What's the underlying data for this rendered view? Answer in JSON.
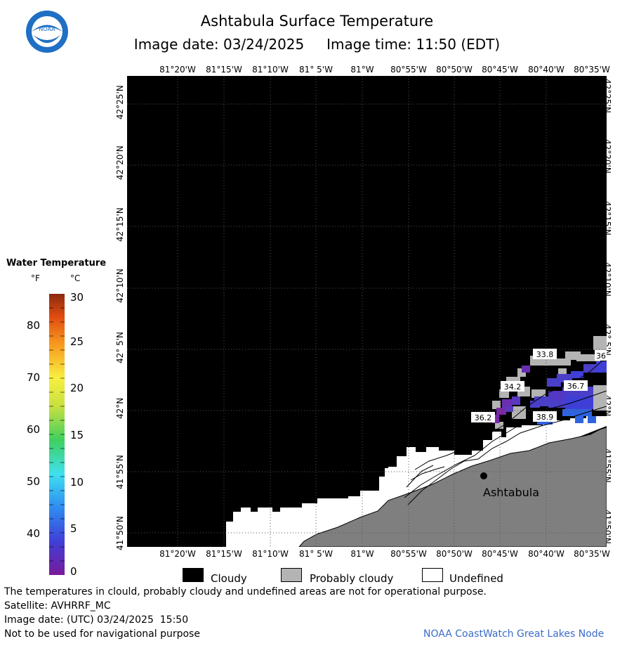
{
  "header": {
    "title": "Ashtabula Surface Temperature",
    "image_date_label": "Image date: 03/24/2025",
    "image_time_label": "Image time: 11:50 (EDT)",
    "logo_text": "NOAA"
  },
  "map": {
    "longitude_ticks": [
      "81°20'W",
      "81°15'W",
      "81°10'W",
      "81° 5'W",
      "81°W",
      "80°55'W",
      "80°50'W",
      "80°45'W",
      "80°40'W",
      "80°35'W"
    ],
    "latitude_ticks": [
      "42°25'N",
      "42°20'N",
      "42°15'N",
      "42°10'N",
      "42° 5'N",
      "42°N",
      "41°55'N",
      "41°50'N"
    ],
    "city": "Ashtabula",
    "temperature_labels": [
      "33.8",
      "36",
      "34.2",
      "36.7",
      "36.2",
      "38.9"
    ],
    "colors": {
      "cloudy": "#000000",
      "probably_cloudy": "#b4b4b4",
      "undefined": "#ffffff",
      "land": "#7f7f7f",
      "cold_water": "#4a3fc8"
    }
  },
  "legend": {
    "title": "Water Temperature",
    "unit_f": "°F",
    "unit_c": "°C",
    "f_ticks": [
      "80",
      "70",
      "60",
      "50",
      "40"
    ],
    "c_ticks": [
      "30",
      "25",
      "20",
      "15",
      "10",
      "5",
      "0"
    ]
  },
  "key": {
    "cloudy": "Cloudy",
    "probably_cloudy": "Probably cloudy",
    "undefined": "Undefined"
  },
  "footer": {
    "disclaimer": "The temperatures in clould, probably cloudy and undefined areas are not for operational purpose.",
    "satellite": "Satellite: AVHRRF_MC",
    "utc": "Image date: (UTC) 03/24/2025  15:50",
    "navigation": "Not to be used for navigational purpose",
    "credit": "NOAA CoastWatch Great Lakes Node"
  }
}
